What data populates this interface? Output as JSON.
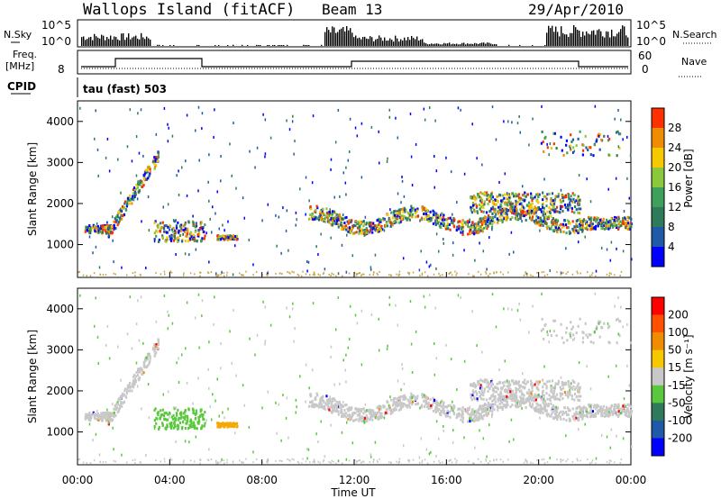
{
  "header": {
    "station": "Wallops Island (fitACF)",
    "beam": "Beam 13",
    "date": "29/Apr/2010"
  },
  "noise_panel": {
    "left_label": "N.Sky",
    "right_label": "N.Search",
    "tick_top": "10^5",
    "tick_bottom": "10^0"
  },
  "freq_panel": {
    "left_label_1": "Freq.",
    "left_label_2": "[MHz]",
    "left_tick": "8",
    "right_label": "Nave",
    "right_tick_top": "60",
    "right_tick_bottom": "0"
  },
  "cpid_panel": {
    "label": "CPID",
    "program": "tau (fast) 503"
  },
  "x_axis": {
    "label": "Time UT",
    "ticks": [
      "00:00",
      "04:00",
      "08:00",
      "12:00",
      "16:00",
      "20:00",
      "00:00"
    ]
  },
  "chart_data": [
    {
      "type": "heatmap",
      "ylabel": "Slant Range [km]",
      "xlabel": "Time UT",
      "xlim": [
        0,
        24
      ],
      "ylim": [
        200,
        4500
      ],
      "y_ticks": [
        "1000",
        "2000",
        "3000",
        "4000"
      ],
      "colorbar": {
        "label": "Power [dB]",
        "ticks": [
          "4",
          "8",
          "12",
          "16",
          "20",
          "24",
          "28"
        ],
        "colors": [
          "#0000ff",
          "#1e5aa8",
          "#2e7a5a",
          "#3ea05a",
          "#8cc83c",
          "#f5c800",
          "#f08c00",
          "#ff3000"
        ]
      }
    },
    {
      "type": "heatmap",
      "ylabel": "Slant Range [km]",
      "xlabel": "Time UT",
      "xlim": [
        0,
        24
      ],
      "ylim": [
        200,
        4500
      ],
      "y_ticks": [
        "1000",
        "2000",
        "3000",
        "4000"
      ],
      "colorbar": {
        "label": "Velocity [m s⁻¹]",
        "ticks": [
          "200",
          "100",
          "50",
          "15",
          "-15",
          "-50",
          "-100",
          "-200"
        ],
        "colors": [
          "#0000ff",
          "#1e5aa8",
          "#2e7a5a",
          "#5ac83c",
          "#c8c8c8",
          "#f5c800",
          "#f08c00",
          "#ff5000",
          "#ff0000"
        ]
      }
    }
  ],
  "colors": {
    "ground_scatter": "#c8c8c8",
    "axis": "#000000"
  }
}
